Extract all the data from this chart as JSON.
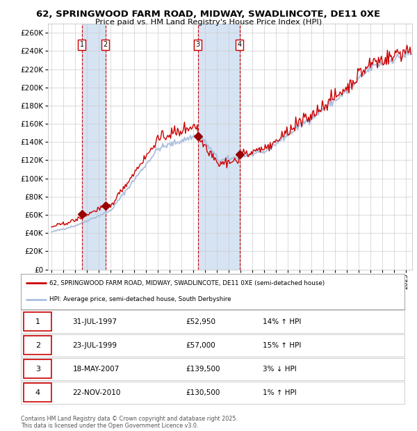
{
  "title_line1": "62, SPRINGWOOD FARM ROAD, MIDWAY, SWADLINCOTE, DE11 0XE",
  "title_line2": "Price paid vs. HM Land Registry's House Price Index (HPI)",
  "ylim": [
    0,
    270000
  ],
  "xlim_start": 1994.7,
  "xlim_end": 2025.5,
  "background_color": "#ffffff",
  "plot_bg_color": "#ffffff",
  "grid_color": "#cccccc",
  "hpi_line_color": "#aabfdd",
  "price_line_color": "#cc0000",
  "marker_color": "#990000",
  "vline_color": "#cc0000",
  "shade_color": "#ccddf0",
  "legend_label_price": "62, SPRINGWOOD FARM ROAD, MIDWAY, SWADLINCOTE, DE11 0XE (semi-detached house)",
  "legend_label_hpi": "HPI: Average price, semi-detached house, South Derbyshire",
  "transactions": [
    {
      "num": 1,
      "date_label": "31-JUL-1997",
      "date_x": 1997.58,
      "price": 52950,
      "pct": "14%",
      "dir": "↑"
    },
    {
      "num": 2,
      "date_label": "23-JUL-1999",
      "date_x": 1999.56,
      "price": 57000,
      "pct": "15%",
      "dir": "↑"
    },
    {
      "num": 3,
      "date_label": "18-MAY-2007",
      "date_x": 2007.38,
      "price": 139500,
      "pct": "3%",
      "dir": "↓"
    },
    {
      "num": 4,
      "date_label": "22-NOV-2010",
      "date_x": 2010.9,
      "price": 130500,
      "pct": "1%",
      "dir": "↑"
    }
  ],
  "footnote_line1": "Contains HM Land Registry data © Crown copyright and database right 2025.",
  "footnote_line2": "This data is licensed under the Open Government Licence v3.0."
}
